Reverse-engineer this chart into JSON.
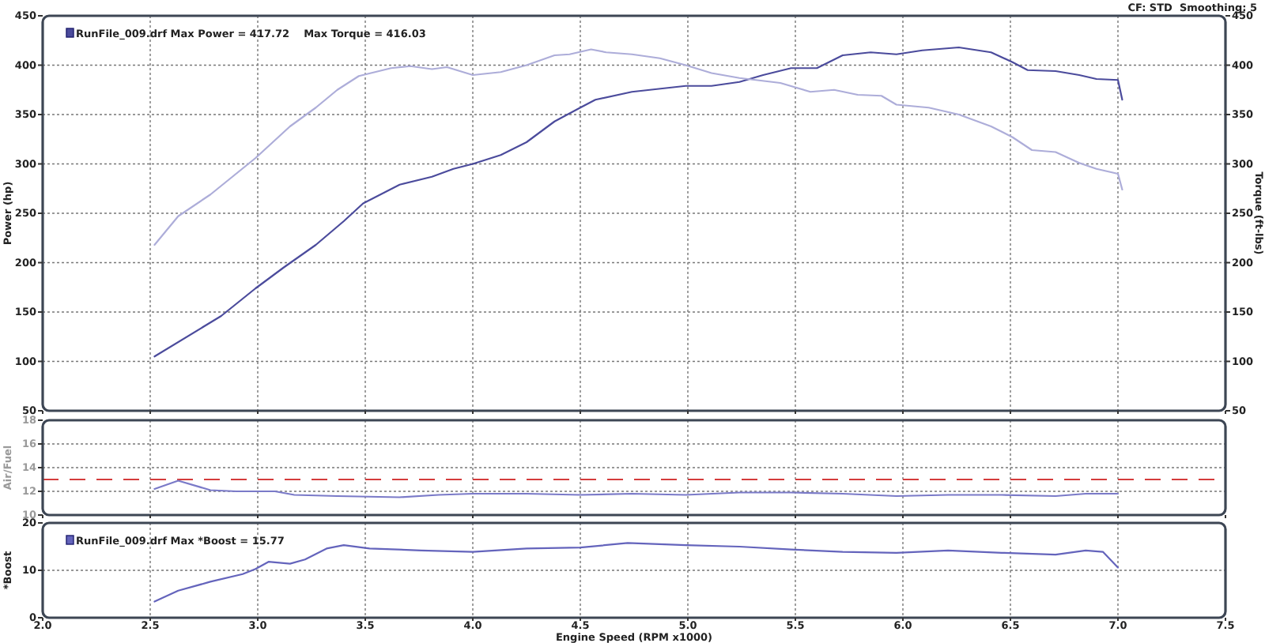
{
  "chart_data": [
    {
      "type": "line",
      "xlim": [
        2.0,
        7.5
      ],
      "xticks": [
        2,
        2.5,
        3,
        3.5,
        4,
        4.5,
        5,
        5.5,
        6,
        6.5,
        7,
        7.5
      ],
      "ylim": [
        50,
        450
      ],
      "yticks": [
        50,
        100,
        150,
        200,
        250,
        300,
        350,
        400,
        450
      ],
      "y2lim": [
        50,
        450
      ],
      "y2ticks": [
        50,
        100,
        150,
        200,
        250,
        300,
        350,
        400,
        450
      ],
      "ylabel": "Power (hp)",
      "y2label": "Torque (ft-lbs)",
      "grid": true,
      "tick_labels": "y",
      "annotations": [
        "CF: STD  Smoothing: 5",
        "RunFile_009.drf Max Power = 417.72    Max Torque = 416.03"
      ],
      "series": [
        {
          "color": "#4b4b9c",
          "x": [
            2.52,
            2.83,
            2.99,
            3.12,
            3.27,
            3.4,
            3.49,
            3.66,
            3.81,
            3.91,
            4.0,
            4.13,
            4.25,
            4.38,
            4.5,
            4.57,
            4.74,
            4.99,
            5.11,
            5.24,
            5.35,
            5.48,
            5.6,
            5.72,
            5.85,
            5.97,
            6.09,
            6.26,
            6.41,
            6.51,
            6.58,
            6.71,
            6.82,
            6.9,
            7.0,
            7.02
          ],
          "values": [
            105,
            146,
            174,
            195,
            218,
            242,
            260,
            279,
            287,
            295,
            300,
            309,
            322,
            343,
            357,
            365,
            373,
            379,
            379,
            383,
            390,
            397,
            397,
            410,
            413,
            411,
            415,
            418,
            413,
            403,
            395,
            394,
            390,
            386,
            385,
            365
          ]
        },
        {
          "color": "#adadd9",
          "axis": "y2",
          "x": [
            2.52,
            2.63,
            2.78,
            2.99,
            3.15,
            3.27,
            3.37,
            3.47,
            3.62,
            3.71,
            3.81,
            3.88,
            4.0,
            4.13,
            4.25,
            4.38,
            4.45,
            4.55,
            4.62,
            4.74,
            4.87,
            4.99,
            5.11,
            5.24,
            5.43,
            5.57,
            5.68,
            5.79,
            5.9,
            5.97,
            6.12,
            6.26,
            6.41,
            6.51,
            6.6,
            6.71,
            6.82,
            6.9,
            7.0,
            7.02
          ],
          "values": [
            218,
            247,
            269,
            306,
            338,
            357,
            375,
            389,
            397,
            399,
            396,
            398,
            390,
            393,
            400,
            410,
            411,
            416,
            413,
            411,
            407,
            400,
            392,
            387,
            382,
            373,
            375,
            370,
            369,
            360,
            357,
            350,
            338,
            327,
            314,
            312,
            301,
            295,
            290,
            274
          ]
        }
      ]
    },
    {
      "type": "line",
      "xlim": [
        2.0,
        7.5
      ],
      "xticks": [
        2,
        2.5,
        3,
        3.5,
        4,
        4.5,
        5,
        5.5,
        6,
        6.5,
        7,
        7.5
      ],
      "ylim": [
        10,
        18
      ],
      "yticks": [
        10,
        12,
        14,
        16,
        18
      ],
      "ylabel": "Air/Fuel",
      "grid": true,
      "tick_labels": "y",
      "ref_lines": [
        {
          "axis": "y",
          "value": 13,
          "color": "#d43c3c",
          "line_style": "dashed"
        }
      ],
      "series": [
        {
          "color": "#7a7ac8",
          "x": [
            2.52,
            2.63,
            2.78,
            2.9,
            3.08,
            3.17,
            3.37,
            3.66,
            3.84,
            4.0,
            4.25,
            4.5,
            4.74,
            4.99,
            5.24,
            5.48,
            5.72,
            5.97,
            6.21,
            6.46,
            6.71,
            6.85,
            7.0
          ],
          "values": [
            12.2,
            12.9,
            12.1,
            12.0,
            12.0,
            11.7,
            11.6,
            11.5,
            11.7,
            11.8,
            11.8,
            11.7,
            11.8,
            11.7,
            11.9,
            11.9,
            11.8,
            11.6,
            11.7,
            11.7,
            11.6,
            11.8,
            11.8
          ]
        }
      ]
    },
    {
      "type": "line",
      "xlim": [
        2.0,
        7.5
      ],
      "xticks": [
        {
          "value": 2,
          "label": "2.0"
        },
        2.5,
        {
          "value": 3,
          "label": "3.0"
        },
        3.5,
        {
          "value": 4,
          "label": "4.0"
        },
        4.5,
        {
          "value": 5,
          "label": "5.0"
        },
        5.5,
        {
          "value": 6,
          "label": "6.0"
        },
        6.5,
        {
          "value": 7,
          "label": "7.0"
        },
        7.5
      ],
      "ylim": [
        0,
        20
      ],
      "yticks": [
        0,
        10,
        20
      ],
      "ylabel": "*Boost",
      "xlabel": "Engine Speed (RPM x1000)",
      "grid": true,
      "annotations": [
        "RunFile_009.drf Max *Boost = 15.77"
      ],
      "series": [
        {
          "color": "#6464bc",
          "x": [
            2.52,
            2.63,
            2.78,
            2.93,
            2.99,
            3.05,
            3.15,
            3.22,
            3.32,
            3.4,
            3.52,
            3.76,
            4.0,
            4.25,
            4.5,
            4.72,
            4.99,
            5.24,
            5.48,
            5.72,
            5.97,
            6.21,
            6.46,
            6.71,
            6.85,
            6.93,
            7.0
          ],
          "values": [
            3.4,
            5.7,
            7.6,
            9.2,
            10.3,
            11.8,
            11.4,
            12.3,
            14.6,
            15.3,
            14.6,
            14.2,
            13.9,
            14.6,
            14.8,
            15.77,
            15.3,
            15.0,
            14.4,
            13.9,
            13.7,
            14.2,
            13.7,
            13.3,
            14.2,
            13.9,
            10.6
          ]
        }
      ]
    }
  ]
}
